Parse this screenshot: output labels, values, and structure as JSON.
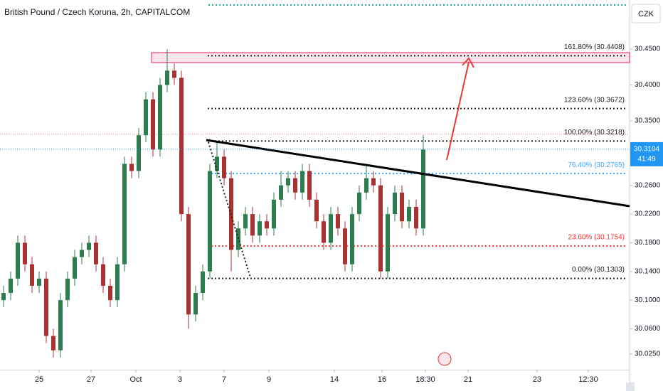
{
  "chart_data": {
    "type": "candlestick",
    "title": "British Pound / Czech Koruna, 2h, CAPITALCOM",
    "currency": "CZK",
    "up_color": "#2e7d4f",
    "down_color": "#a83232",
    "xlim": [
      0,
      88.5
    ],
    "ylim": [
      30.003,
      30.5185
    ],
    "x": [
      0.5,
      1.5,
      2.5,
      3.5,
      4.5,
      5.5,
      6.5,
      7.5,
      8.5,
      9.5,
      10.5,
      11.5,
      12.5,
      13.5,
      14.5,
      15.5,
      16.5,
      17.5,
      18.5,
      19.5,
      20.5,
      21.5,
      22.5,
      23.5,
      24.5,
      25.5,
      26.5,
      27.5,
      28.5,
      29.5,
      30.5,
      31.5,
      32.5,
      33.5,
      34.5,
      35.5,
      36.5,
      37.5,
      38.5,
      39.5,
      40.5,
      41.5,
      42.5,
      43.5,
      44.5,
      45.5,
      46.5,
      47.5,
      48.5,
      49.5,
      50.5,
      51.5,
      52.5,
      53.5,
      54.5,
      55.5,
      56.5,
      57.5,
      58.5,
      59.5
    ],
    "open": [
      30.1,
      30.11,
      30.13,
      30.18,
      30.15,
      30.12,
      30.13,
      30.05,
      30.03,
      30.1,
      30.13,
      30.16,
      30.17,
      30.18,
      30.15,
      30.12,
      30.1,
      30.15,
      30.29,
      30.28,
      30.33,
      30.38,
      30.31,
      30.4,
      30.42,
      30.41,
      30.22,
      30.08,
      30.11,
      30.14,
      30.28,
      30.3,
      30.27,
      30.17,
      30.2,
      30.22,
      30.19,
      30.21,
      30.2,
      30.24,
      30.26,
      30.27,
      30.25,
      30.28,
      30.24,
      30.21,
      30.18,
      30.22,
      30.2,
      30.15,
      30.22,
      30.25,
      30.27,
      30.26,
      30.14,
      30.22,
      30.25,
      30.21,
      30.23,
      30.2
    ],
    "high": [
      30.12,
      30.14,
      30.19,
      30.19,
      30.16,
      30.14,
      30.14,
      30.06,
      30.11,
      30.14,
      30.17,
      30.18,
      30.19,
      30.19,
      30.16,
      30.13,
      30.16,
      30.3,
      30.3,
      30.34,
      30.39,
      30.39,
      30.41,
      30.45,
      30.43,
      30.42,
      30.23,
      30.12,
      30.15,
      30.29,
      30.32,
      30.31,
      30.28,
      30.21,
      30.23,
      30.23,
      30.22,
      30.22,
      30.25,
      30.28,
      30.28,
      30.28,
      30.29,
      30.29,
      30.25,
      30.22,
      30.23,
      30.23,
      30.21,
      30.23,
      30.26,
      30.29,
      30.28,
      30.27,
      30.23,
      30.26,
      30.26,
      30.24,
      30.24,
      30.33
    ],
    "low": [
      30.09,
      30.1,
      30.12,
      30.14,
      30.11,
      30.11,
      30.04,
      30.02,
      30.02,
      30.09,
      30.12,
      30.15,
      30.16,
      30.14,
      30.11,
      30.09,
      30.09,
      30.14,
      30.27,
      30.27,
      30.32,
      30.3,
      30.3,
      30.39,
      30.4,
      30.21,
      30.06,
      30.07,
      30.1,
      30.13,
      30.27,
      30.26,
      30.14,
      30.16,
      30.19,
      30.18,
      30.18,
      30.19,
      30.19,
      30.23,
      30.25,
      30.24,
      30.24,
      30.23,
      30.2,
      30.17,
      30.17,
      30.19,
      30.14,
      30.14,
      30.21,
      30.24,
      30.25,
      30.13,
      30.13,
      30.21,
      30.2,
      30.2,
      30.19,
      30.19
    ],
    "close": [
      30.11,
      30.13,
      30.18,
      30.15,
      30.12,
      30.13,
      30.05,
      30.03,
      30.1,
      30.13,
      30.16,
      30.17,
      30.18,
      30.15,
      30.12,
      30.1,
      30.15,
      30.29,
      30.28,
      30.33,
      30.38,
      30.31,
      30.4,
      30.42,
      30.41,
      30.22,
      30.08,
      30.11,
      30.14,
      30.28,
      30.3,
      30.27,
      30.17,
      30.2,
      30.22,
      30.19,
      30.21,
      30.2,
      30.24,
      30.26,
      30.27,
      30.25,
      30.28,
      30.24,
      30.21,
      30.18,
      30.22,
      30.2,
      30.15,
      30.22,
      30.25,
      30.27,
      30.26,
      30.14,
      30.22,
      30.25,
      30.21,
      30.23,
      30.2,
      30.31
    ],
    "xticks": [
      {
        "value": 5.5,
        "label": "25"
      },
      {
        "value": 12.8,
        "label": "27"
      },
      {
        "value": 19.1,
        "label": "Oct"
      },
      {
        "value": 25.3,
        "label": "3"
      },
      {
        "value": 31.5,
        "label": "7"
      },
      {
        "value": 37.8,
        "label": "9"
      },
      {
        "value": 47,
        "label": "14"
      },
      {
        "value": 53.7,
        "label": "16"
      },
      {
        "value": 59.8,
        "label": "18:30"
      },
      {
        "value": 65.8,
        "label": "21"
      },
      {
        "value": 75.5,
        "label": "23"
      },
      {
        "value": 82.7,
        "label": "12:30"
      }
    ],
    "yticks": [
      {
        "value": 30.45,
        "label": "30.4500"
      },
      {
        "value": 30.4,
        "label": "30.4000"
      },
      {
        "value": 30.35,
        "label": "30.3500"
      },
      {
        "value": 30.26,
        "label": "30.2600"
      },
      {
        "value": 30.22,
        "label": "30.2200"
      },
      {
        "value": 30.18,
        "label": "30.1800"
      },
      {
        "value": 30.14,
        "label": "30.1400"
      },
      {
        "value": 30.1,
        "label": "30.1000"
      },
      {
        "value": 30.06,
        "label": "30.0600"
      },
      {
        "value": 30.025,
        "label": "30.0250"
      }
    ],
    "fib_levels": [
      {
        "label": "161.80% (30.4408)",
        "value": 30.4408,
        "color": "#222222"
      },
      {
        "label": "123.60% (30.3672)",
        "value": 30.3672,
        "color": "#222222"
      },
      {
        "label": "100.00% (30.3218)",
        "value": 30.3218,
        "color": "#222222"
      },
      {
        "label": "76.40% (30.2765)",
        "value": 30.2765,
        "color": "#42a5f5"
      },
      {
        "label": "23.60% (30.1754)",
        "value": 30.1754,
        "color": "#e53935"
      },
      {
        "label": "0.00% (30.1303)",
        "value": 30.1303,
        "color": "#222222"
      }
    ],
    "last_price": 30.3104,
    "countdown": "41:49"
  }
}
